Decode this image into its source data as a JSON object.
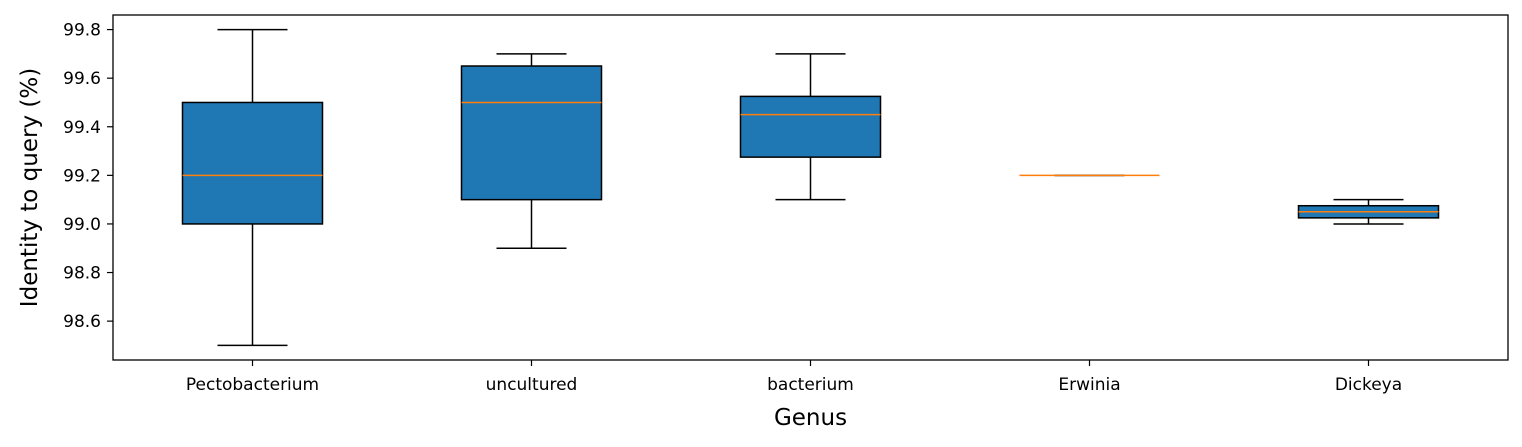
{
  "chart_data": {
    "type": "box",
    "title": "",
    "xlabel": "Genus",
    "ylabel": "Identity to query (%)",
    "ylim": [
      98.44,
      99.86
    ],
    "yticks": [
      98.6,
      98.8,
      99.0,
      99.2,
      99.4,
      99.6,
      99.8
    ],
    "ytick_labels": [
      "98.6",
      "98.8",
      "99.0",
      "99.2",
      "99.4",
      "99.6",
      "99.8"
    ],
    "grid": false,
    "colors": {
      "box_fill": "#1f77b4",
      "median": "#ff7f0e",
      "stroke": "#000000"
    },
    "categories": [
      "Pectobacterium",
      "uncultured",
      "bacterium",
      "Erwinia",
      "Dickeya"
    ],
    "boxes": [
      {
        "category": "Pectobacterium",
        "whisker_low": 98.5,
        "q1": 99.0,
        "median": 99.2,
        "q3": 99.5,
        "whisker_high": 99.8
      },
      {
        "category": "uncultured",
        "whisker_low": 98.9,
        "q1": 99.1,
        "median": 99.5,
        "q3": 99.65,
        "whisker_high": 99.7
      },
      {
        "category": "bacterium",
        "whisker_low": 99.1,
        "q1": 99.275,
        "median": 99.45,
        "q3": 99.525,
        "whisker_high": 99.7
      },
      {
        "category": "Erwinia",
        "whisker_low": 99.2,
        "q1": 99.2,
        "median": 99.2,
        "q3": 99.2,
        "whisker_high": 99.2
      },
      {
        "category": "Dickeya",
        "whisker_low": 99.0,
        "q1": 99.025,
        "median": 99.05,
        "q3": 99.075,
        "whisker_high": 99.1
      }
    ]
  }
}
